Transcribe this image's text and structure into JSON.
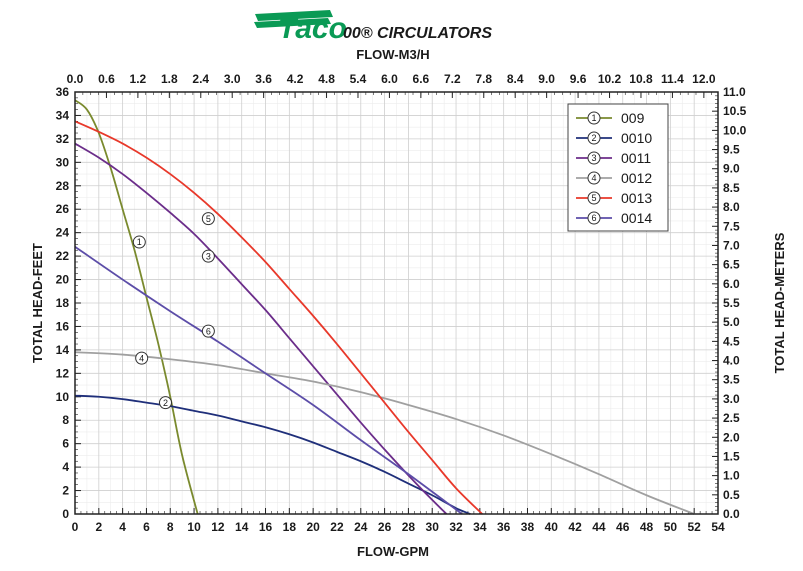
{
  "header": {
    "brand": "Taco",
    "title": "00® CIRCULATORS"
  },
  "chart_data": {
    "type": "line",
    "title": "00® CIRCULATORS",
    "xlabel": "FLOW-GPM",
    "ylabel": "TOTAL HEAD-FEET",
    "x2label": "FLOW-M3/H",
    "y2label": "TOTAL HEAD-METERS",
    "xlim": [
      0,
      54
    ],
    "ylim": [
      0,
      36
    ],
    "x2lim": [
      0,
      12.27
    ],
    "y2lim": [
      0,
      11.0
    ],
    "grid": true,
    "legend_position": "top-right",
    "x_ticks": [
      "0",
      "2",
      "4",
      "6",
      "8",
      "10",
      "12",
      "14",
      "16",
      "18",
      "20",
      "22",
      "24",
      "26",
      "28",
      "30",
      "32",
      "34",
      "36",
      "38",
      "40",
      "42",
      "44",
      "46",
      "48",
      "50",
      "52",
      "54"
    ],
    "y_ticks": [
      "0",
      "2",
      "4",
      "6",
      "8",
      "10",
      "12",
      "14",
      "16",
      "18",
      "20",
      "22",
      "24",
      "26",
      "28",
      "30",
      "32",
      "34",
      "36"
    ],
    "x2_ticks": [
      "0.0",
      "0.6",
      "1.2",
      "1.8",
      "2.4",
      "3.0",
      "3.6",
      "4.2",
      "4.8",
      "5.4",
      "6.0",
      "6.6",
      "7.2",
      "7.8",
      "8.4",
      "9.0",
      "9.6",
      "10.2",
      "10.8",
      "11.4",
      "12.0"
    ],
    "y2_ticks": [
      "0.0",
      "0.5",
      "1.0",
      "1.5",
      "2.0",
      "2.5",
      "3.0",
      "3.5",
      "4.0",
      "4.5",
      "5.0",
      "5.5",
      "6.0",
      "6.5",
      "7.0",
      "7.5",
      "8.0",
      "8.5",
      "9.0",
      "9.5",
      "10.0",
      "10.5",
      "11.0"
    ],
    "series": [
      {
        "name": "009",
        "marker": "1",
        "color": "#7a8a2e",
        "x": [
          0,
          1,
          2,
          3,
          4,
          5,
          6,
          7,
          8,
          9,
          10.3
        ],
        "y": [
          35.3,
          34.5,
          32.5,
          29.5,
          26.0,
          22.5,
          18.5,
          14.5,
          10.0,
          5.0,
          0
        ],
        "marker_point": [
          5.4,
          23.2
        ]
      },
      {
        "name": "0010",
        "marker": "2",
        "color": "#1f2f7a",
        "x": [
          0,
          2,
          4,
          6,
          8,
          10,
          12,
          14,
          16,
          18,
          20,
          22,
          24,
          26,
          28,
          30,
          32,
          33.2
        ],
        "y": [
          10.1,
          10.0,
          9.8,
          9.5,
          9.2,
          8.8,
          8.4,
          7.9,
          7.4,
          6.8,
          6.1,
          5.3,
          4.5,
          3.6,
          2.6,
          1.6,
          0.5,
          0
        ],
        "marker_point": [
          7.6,
          9.5
        ]
      },
      {
        "name": "0011",
        "marker": "3",
        "color": "#6b2d8a",
        "x": [
          0,
          2,
          4,
          6,
          8,
          10,
          12,
          14,
          16,
          18,
          20,
          22,
          24,
          26,
          28,
          30,
          31.2
        ],
        "y": [
          31.6,
          30.4,
          29.0,
          27.4,
          25.7,
          23.9,
          21.8,
          19.6,
          17.4,
          15.0,
          12.6,
          10.2,
          7.8,
          5.5,
          3.3,
          1.2,
          0
        ],
        "marker_point": [
          11.2,
          22.0
        ]
      },
      {
        "name": "0012",
        "marker": "4",
        "color": "#a0a0a0",
        "x": [
          0,
          4,
          8,
          12,
          16,
          20,
          24,
          28,
          32,
          36,
          40,
          44,
          48,
          52
        ],
        "y": [
          13.8,
          13.6,
          13.2,
          12.7,
          12.0,
          11.3,
          10.4,
          9.3,
          8.1,
          6.7,
          5.1,
          3.4,
          1.6,
          0
        ],
        "marker_point": [
          5.6,
          13.3
        ]
      },
      {
        "name": "0013",
        "marker": "5",
        "color": "#e8382a",
        "x": [
          0,
          2,
          4,
          6,
          8,
          10,
          12,
          14,
          16,
          18,
          20,
          22,
          24,
          26,
          28,
          30,
          32,
          34.2
        ],
        "y": [
          33.5,
          32.6,
          31.6,
          30.4,
          29.0,
          27.4,
          25.6,
          23.6,
          21.5,
          19.2,
          16.9,
          14.5,
          12.0,
          9.5,
          7.0,
          4.6,
          2.2,
          0
        ],
        "marker_point": [
          11.2,
          25.2
        ]
      },
      {
        "name": "0014",
        "marker": "6",
        "color": "#5c4da8",
        "x": [
          0,
          4,
          8,
          12,
          16,
          20,
          24,
          28,
          32.5
        ],
        "y": [
          22.8,
          20.0,
          17.3,
          14.7,
          12.0,
          9.3,
          6.3,
          3.4,
          0
        ],
        "marker_point": [
          11.2,
          15.6
        ]
      }
    ]
  }
}
